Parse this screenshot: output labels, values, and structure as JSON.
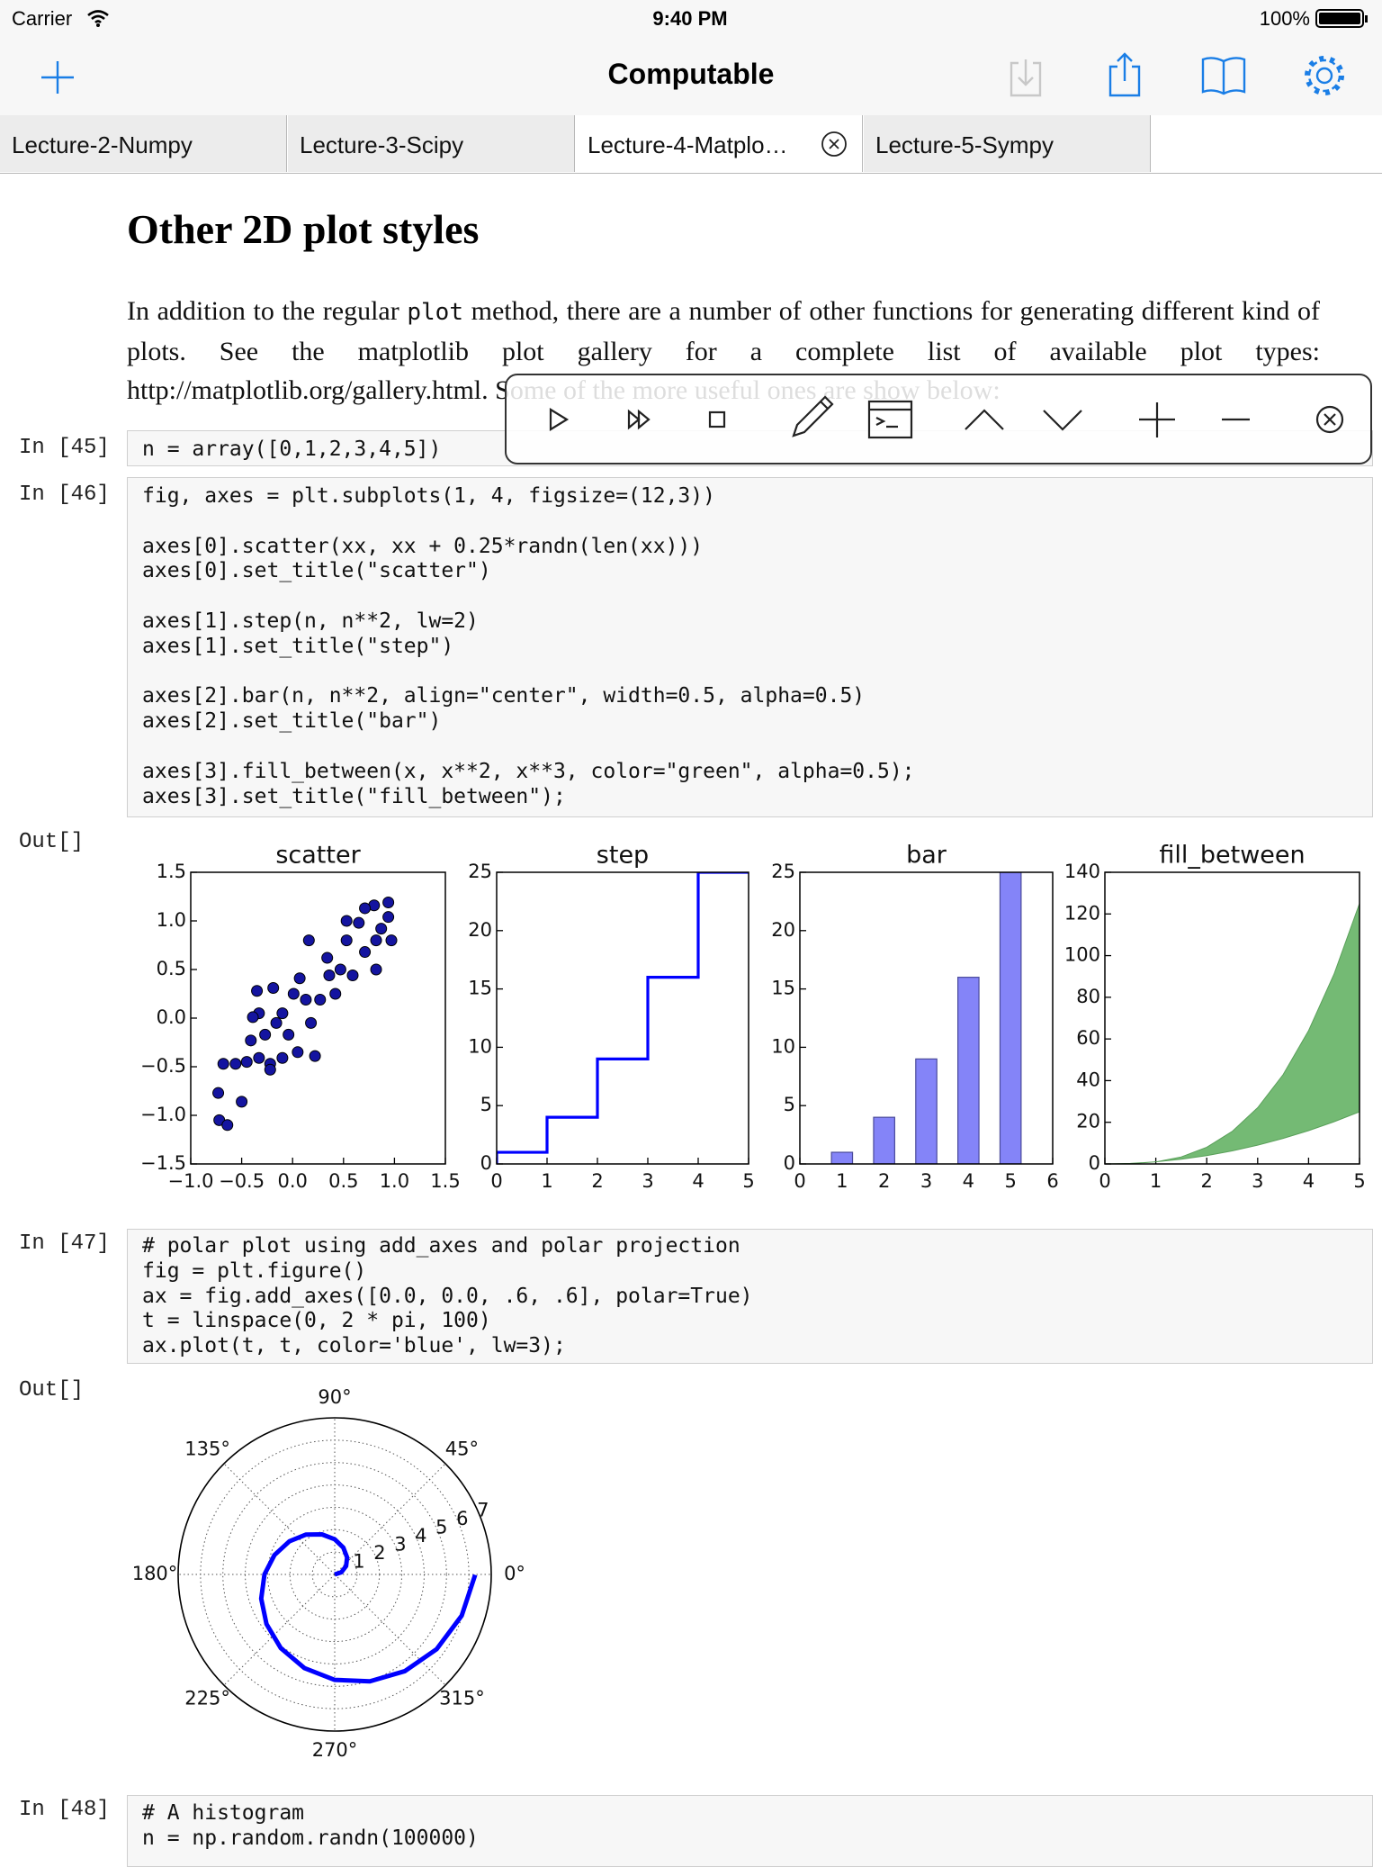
{
  "status_bar": {
    "carrier": "Carrier",
    "time": "9:40 PM",
    "battery": "100%"
  },
  "nav": {
    "title": "Computable"
  },
  "tabs": [
    "Lecture-2-Numpy",
    "Lecture-3-Scipy",
    "Lecture-4-Matplo…",
    "Lecture-5-Sympy"
  ],
  "notebook": {
    "heading": "Other 2D plot styles",
    "paragraph": {
      "before": "In addition to the regular ",
      "code": "plot",
      "after": " method, there are a number of other functions for generating different kind of plots. See the matplotlib plot gallery for a complete list of available plot types: http://matplotlib.org/gallery.html. Some of the more useful ones are show below:"
    },
    "cells": [
      {
        "prompt": "In [45]",
        "code": "n = array([0,1,2,3,4,5])"
      },
      {
        "prompt": "In [46]",
        "code": "fig, axes = plt.subplots(1, 4, figsize=(12,3))\n\naxes[0].scatter(xx, xx + 0.25*randn(len(xx)))\naxes[0].set_title(\"scatter\")\n\naxes[1].step(n, n**2, lw=2)\naxes[1].set_title(\"step\")\n\naxes[2].bar(n, n**2, align=\"center\", width=0.5, alpha=0.5)\naxes[2].set_title(\"bar\")\n\naxes[3].fill_between(x, x**2, x**3, color=\"green\", alpha=0.5);\naxes[3].set_title(\"fill_between\");"
      },
      {
        "prompt": "Out[]"
      },
      {
        "prompt": "In [47]",
        "code": "# polar plot using add_axes and polar projection\nfig = plt.figure()\nax = fig.add_axes([0.0, 0.0, .6, .6], polar=True)\nt = linspace(0, 2 * pi, 100)\nax.plot(t, t, color='blue', lw=3);"
      },
      {
        "prompt": "Out[]"
      },
      {
        "prompt": "In [48]",
        "code": "# A histogram\nn = np.random.randn(100000)"
      }
    ]
  },
  "chart_data": [
    {
      "type": "scatter",
      "title": "scatter",
      "color": "#1414a0",
      "x": [
        -0.72,
        -0.64,
        -0.73,
        -0.5,
        -0.68,
        -0.56,
        -0.45,
        -0.33,
        -0.22,
        -0.1,
        -0.41,
        -0.27,
        -0.16,
        -0.04,
        0.22,
        0.05,
        -0.33,
        -0.19,
        -0.35,
        0.01,
        0.13,
        0.18,
        0.07,
        0.16,
        0.34,
        0.36,
        0.27,
        0.42,
        0.47,
        0.59,
        0.53,
        0.65,
        0.71,
        0.82,
        0.82,
        0.94,
        0.94,
        0.8,
        0.71,
        0.53,
        0.87,
        0.97,
        -0.1,
        -0.39,
        -0.22
      ],
      "y": [
        -1.05,
        -1.1,
        -0.77,
        -0.86,
        -0.47,
        -0.47,
        -0.45,
        -0.41,
        -0.47,
        -0.41,
        -0.23,
        -0.17,
        -0.05,
        -0.17,
        -0.39,
        -0.35,
        0.05,
        0.31,
        0.28,
        0.25,
        0.19,
        -0.05,
        0.41,
        0.8,
        0.62,
        0.44,
        0.19,
        0.25,
        0.5,
        0.44,
        0.8,
        0.98,
        0.68,
        0.5,
        0.8,
        1.04,
        1.19,
        1.16,
        1.13,
        1.0,
        0.92,
        0.8,
        0.05,
        0.01,
        -0.53
      ],
      "xlim": [
        -1,
        1.5
      ],
      "ylim": [
        -1.5,
        1.5
      ],
      "xticks": [
        {
          "value": -1,
          "label": "−1.0"
        },
        {
          "value": -0.5,
          "label": "−0.5"
        },
        {
          "value": 0,
          "label": "0.0"
        },
        0.5,
        {
          "value": 1,
          "label": "1.0"
        },
        1.5
      ],
      "yticks": [
        {
          "value": -1.5,
          "label": "−1.5"
        },
        {
          "value": -1,
          "label": "−1.0"
        },
        {
          "value": -0.5,
          "label": "−0.5"
        },
        {
          "value": 0,
          "label": "0.0"
        },
        0.5,
        {
          "value": 1,
          "label": "1.0"
        },
        1.5
      ]
    },
    {
      "type": "step",
      "title": "step",
      "color": "#0000ff",
      "x": [
        0,
        1,
        2,
        3,
        4,
        5
      ],
      "y": [
        0,
        1,
        4,
        9,
        16,
        25
      ],
      "xlim": [
        0,
        5
      ],
      "ylim": [
        0,
        25
      ],
      "xticks": [
        0,
        1,
        2,
        3,
        4,
        5
      ],
      "yticks": [
        0,
        5,
        10,
        15,
        20,
        25
      ]
    },
    {
      "type": "bar",
      "title": "bar",
      "color": "#8484f8",
      "x": [
        0,
        1,
        2,
        3,
        4,
        5
      ],
      "values": [
        0,
        1,
        4,
        9,
        16,
        25
      ],
      "xlim": [
        0,
        6
      ],
      "ylim": [
        0,
        25
      ],
      "xticks": [
        0,
        1,
        2,
        3,
        4,
        5,
        6
      ],
      "yticks": [
        0,
        5,
        10,
        15,
        20,
        25
      ]
    },
    {
      "type": "fill_between",
      "title": "fill_between",
      "color": "#74ba74",
      "x": [
        0,
        0.5,
        1,
        1.5,
        2,
        2.5,
        3,
        3.5,
        4,
        4.5,
        5
      ],
      "y1": [
        0,
        0.25,
        1,
        2.25,
        4,
        6.25,
        9,
        12.25,
        16,
        20.25,
        25
      ],
      "y2": [
        0,
        0.125,
        1,
        3.375,
        8,
        15.625,
        27,
        42.875,
        64,
        91.125,
        125
      ],
      "xlim": [
        0,
        5
      ],
      "ylim": [
        0,
        140
      ],
      "xticks": [
        0,
        1,
        2,
        3,
        4,
        5
      ],
      "yticks": [
        0,
        20,
        40,
        60,
        80,
        100,
        120,
        140
      ]
    },
    {
      "type": "polar",
      "color": "#0000ff",
      "theta": [
        0,
        0.31,
        0.63,
        0.94,
        1.26,
        1.57,
        1.88,
        2.2,
        2.51,
        2.83,
        3.14,
        3.46,
        3.77,
        4.08,
        4.4,
        4.71,
        5.03,
        5.34,
        5.65,
        5.97,
        6.28
      ],
      "r": [
        0,
        0.31,
        0.63,
        0.94,
        1.26,
        1.57,
        1.88,
        2.2,
        2.51,
        2.83,
        3.14,
        3.46,
        3.77,
        4.08,
        4.4,
        4.71,
        5.03,
        5.34,
        5.65,
        5.97,
        6.28
      ],
      "rlim": [
        0,
        7
      ],
      "rticks": [
        1,
        2,
        3,
        4,
        5,
        6,
        7
      ],
      "thetaticks": [
        {
          "value": 0,
          "label": "0°"
        },
        {
          "value": 45,
          "label": "45°"
        },
        {
          "value": 90,
          "label": "90°"
        },
        {
          "value": 135,
          "label": "135°"
        },
        {
          "value": 180,
          "label": "180°"
        },
        {
          "value": 225,
          "label": "225°"
        },
        {
          "value": 270,
          "label": "270°"
        },
        {
          "value": 315,
          "label": "315°"
        }
      ]
    }
  ]
}
